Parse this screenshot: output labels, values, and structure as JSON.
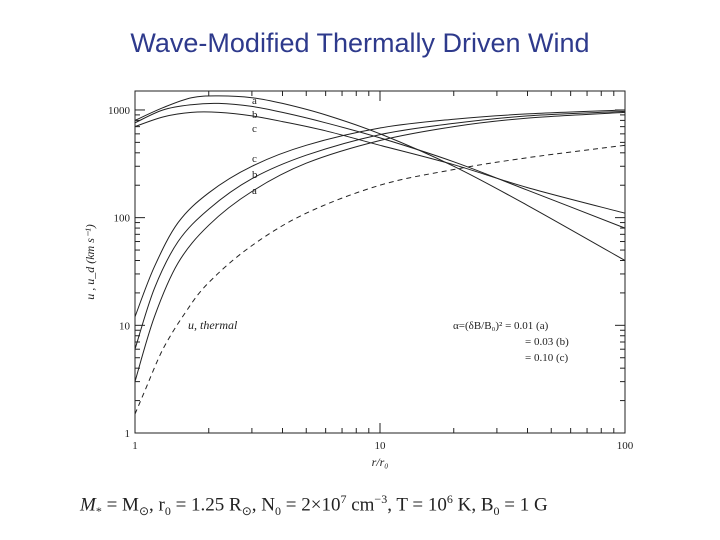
{
  "slide": {
    "title": "Wave-Modified Thermally Driven Wind"
  },
  "footer": {
    "mstar": "M",
    "mstar_sub": "*",
    "eq1": " = M",
    "sun1": "⊙",
    "r0": ", r",
    "r0_sub": "0",
    "r0_val": " = 1.25 R",
    "sun2": "⊙",
    "n0": ", N",
    "n0_sub": "0",
    "n0_val": " = 2×10",
    "n0_exp": "7",
    "n0_unit": " cm",
    "n0_unit_exp": "−3",
    "t": ", T = 10",
    "t_exp": "6",
    "t_unit": " K, B",
    "b0_sub": "0",
    "b0_val": " = 1 G"
  },
  "chart_data": {
    "type": "line",
    "xscale": "log",
    "yscale": "log",
    "xlim": [
      1,
      100
    ],
    "ylim": [
      1,
      1500
    ],
    "xlabel": "r/r₀",
    "ylabel": "u , u_d (km s⁻¹)",
    "x_ticks": [
      1,
      10,
      100
    ],
    "x_tick_labels": [
      "1",
      "10",
      "100"
    ],
    "y_ticks": [
      1,
      10,
      100,
      1000
    ],
    "y_tick_labels": [
      "1",
      "10",
      "100",
      "1000"
    ],
    "legend": {
      "position": "bottom-right",
      "lines": [
        "α=(δB/B₀)² = 0.01 (a)",
        "= 0.03 (b)",
        "= 0.10 (c)"
      ]
    },
    "annotations": {
      "thermal": "u, thermal",
      "top_labels": [
        "a",
        "b",
        "c"
      ],
      "mid_labels": [
        "c",
        "b",
        "a"
      ]
    },
    "series": [
      {
        "name": "a",
        "style": "solid",
        "x": [
          1,
          1.3,
          1.7,
          2.2,
          3,
          4,
          6,
          10,
          20,
          40,
          100
        ],
        "y": [
          800,
          1050,
          1300,
          1350,
          1300,
          1150,
          900,
          600,
          300,
          130,
          40
        ]
      },
      {
        "name": "b",
        "style": "solid",
        "x": [
          1,
          1.3,
          1.7,
          2.2,
          3,
          4,
          6,
          10,
          20,
          40,
          100
        ],
        "y": [
          760,
          1000,
          1120,
          1150,
          1080,
          950,
          760,
          550,
          330,
          180,
          80
        ]
      },
      {
        "name": "c",
        "style": "solid",
        "x": [
          1,
          1.3,
          1.7,
          2.2,
          3,
          4,
          6,
          10,
          20,
          40,
          100
        ],
        "y": [
          700,
          860,
          950,
          950,
          880,
          780,
          640,
          470,
          310,
          190,
          110
        ]
      },
      {
        "name": "c",
        "style": "solid",
        "x": [
          1,
          1.2,
          1.5,
          2,
          3,
          5,
          10,
          20,
          40,
          100
        ],
        "y": [
          12,
          35,
          90,
          170,
          300,
          470,
          680,
          820,
          920,
          1000
        ]
      },
      {
        "name": "b",
        "style": "solid",
        "x": [
          1,
          1.2,
          1.5,
          2,
          3,
          5,
          10,
          20,
          40,
          100
        ],
        "y": [
          6,
          22,
          60,
          120,
          230,
          380,
          590,
          750,
          880,
          970
        ]
      },
      {
        "name": "a",
        "style": "solid",
        "x": [
          1,
          1.2,
          1.5,
          2,
          3,
          5,
          10,
          20,
          40,
          100
        ],
        "y": [
          3,
          12,
          38,
          85,
          175,
          320,
          520,
          700,
          840,
          950
        ]
      },
      {
        "name": "u, thermal",
        "style": "dashed",
        "x": [
          1,
          1.1,
          1.3,
          1.6,
          2,
          3,
          5,
          10,
          20,
          40,
          100
        ],
        "y": [
          1.5,
          2.5,
          6,
          13,
          25,
          55,
          110,
          200,
          280,
          360,
          470
        ]
      }
    ]
  }
}
